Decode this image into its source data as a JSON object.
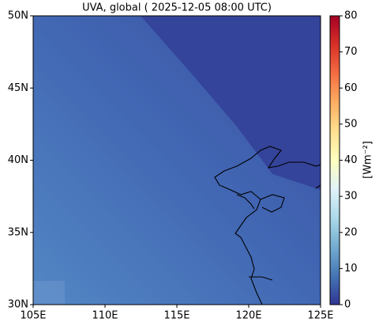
{
  "chart_data": {
    "type": "map",
    "title": "UVA, global ( 2025-12-05 08:00 UTC)",
    "xlim": [
      105,
      125
    ],
    "xticks": [
      {
        "value": 105,
        "label": "105E"
      },
      {
        "value": 110,
        "label": "110E"
      },
      {
        "value": 115,
        "label": "115E"
      },
      {
        "value": 120,
        "label": "120E"
      },
      {
        "value": 125,
        "label": "125E"
      }
    ],
    "ylim": [
      30,
      50
    ],
    "yticks": [
      {
        "value": 30,
        "label": "30N"
      },
      {
        "value": 35,
        "label": "35N"
      },
      {
        "value": 40,
        "label": "40N"
      },
      {
        "value": 45,
        "label": "45N"
      },
      {
        "value": 50,
        "label": "50N"
      }
    ],
    "colorbar": {
      "label": "[Wm⁻²]",
      "clim": [
        0,
        80
      ],
      "ticks": [
        0,
        10,
        20,
        30,
        40,
        50,
        60,
        70,
        80
      ],
      "colormap": [
        "#313695",
        "#4575b4",
        "#74add1",
        "#abd9e9",
        "#e0f3f8",
        "#ffffbf",
        "#fee090",
        "#fdae61",
        "#f46d43",
        "#d73027",
        "#a50026"
      ]
    }
  }
}
